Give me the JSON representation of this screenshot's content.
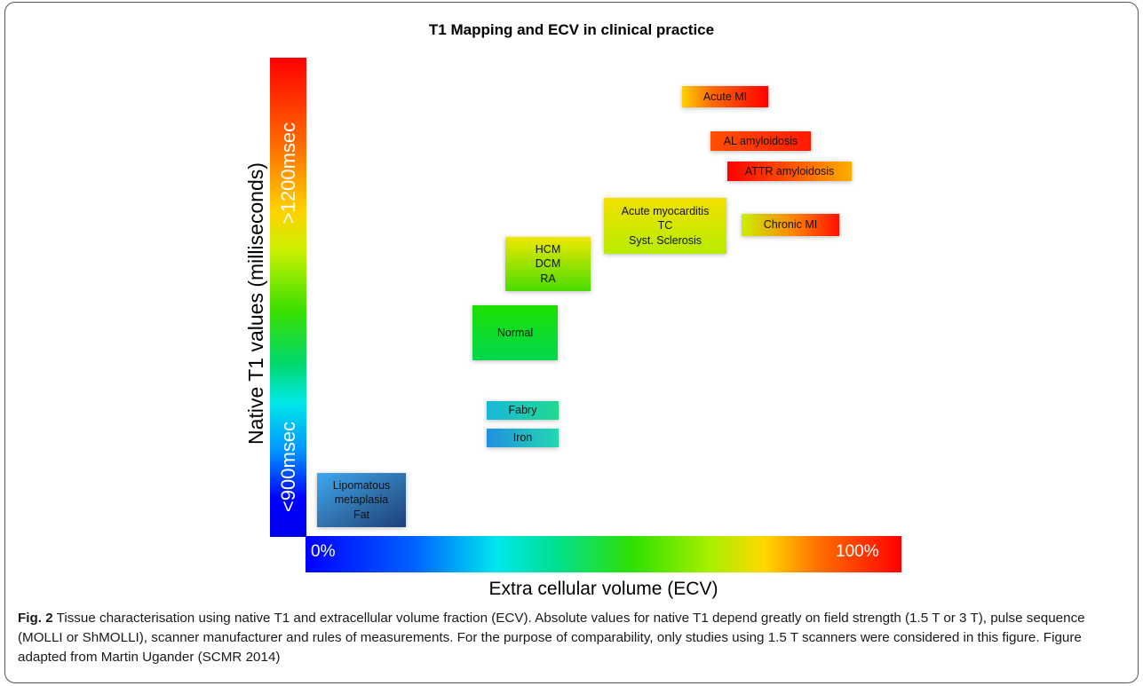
{
  "title": "T1 Mapping and ECV in clinical practice",
  "y_axis": {
    "label": "Native T1 values (milliseconds)",
    "top_label": ">1200msec",
    "bottom_label": "<900msec"
  },
  "x_axis": {
    "label": "Extra cellular volume (ECV)",
    "left_label": "0%",
    "right_label": "100%"
  },
  "boxes": [
    {
      "id": "acute-mi",
      "lines": [
        "Acute MI"
      ],
      "gradient": "linear-gradient(to right, #ffd000 0%, #ff6a00 35%, #ff0000 100%)"
    },
    {
      "id": "al-amyloidosis",
      "lines": [
        "AL amyloidosis"
      ],
      "gradient": "linear-gradient(to right, #ff5000 0%, #ff1a00 100%)"
    },
    {
      "id": "attr-amyloidosis",
      "lines": [
        "ATTR amyloidosis"
      ],
      "gradient": "linear-gradient(to right, #ff0000 0%, #ff5a00 55%, #ffb000 100%)"
    },
    {
      "id": "chronic-mi",
      "lines": [
        "Chronic MI"
      ],
      "gradient": "linear-gradient(to right, #c8f000 0%, #ff8000 55%, #ff1000 100%)"
    },
    {
      "id": "acute-myocarditis",
      "lines": [
        "Acute myocarditis",
        "TC",
        "Syst. Sclerosis"
      ],
      "gradient": "linear-gradient(to bottom, #f2e000 0%, #b8ec00 100%)"
    },
    {
      "id": "hcm-dcm-ra",
      "lines": [
        "HCM",
        "DCM",
        "RA"
      ],
      "gradient": "linear-gradient(to bottom, #f0e800 0%, #48dc00 100%)"
    },
    {
      "id": "normal",
      "lines": [
        "Normal"
      ],
      "gradient": "linear-gradient(to bottom, #1ee000 0%, #00d850 100%)"
    },
    {
      "id": "fabry",
      "lines": [
        "Fabry"
      ],
      "gradient": "linear-gradient(to right, #18b8d8 0%, #20d890 100%)"
    },
    {
      "id": "iron",
      "lines": [
        "Iron"
      ],
      "gradient": "linear-gradient(to right, #2090e0 0%, #22d8b0 100%)"
    },
    {
      "id": "lipomatous-fat",
      "lines": [
        "Lipomatous",
        "metaplasia",
        "Fat"
      ],
      "gradient": "linear-gradient(to bottom right, #3fa8f0 0%, #2f6ea8 55%, #1d3f7a 100%)"
    }
  ],
  "caption": {
    "fig_label": "Fig. 2",
    "text": "Tissue characterisation using native T1 and extracellular volume fraction (ECV). Absolute values for native T1 depend greatly on field strength (1.5 T or 3 T), pulse sequence (MOLLI or ShMOLLI), scanner manufacturer and rules of measurements. For the purpose of comparability, only studies using 1.5 T scanners were considered in this figure. Figure adapted from Martin Ugander (SCMR 2014)"
  }
}
